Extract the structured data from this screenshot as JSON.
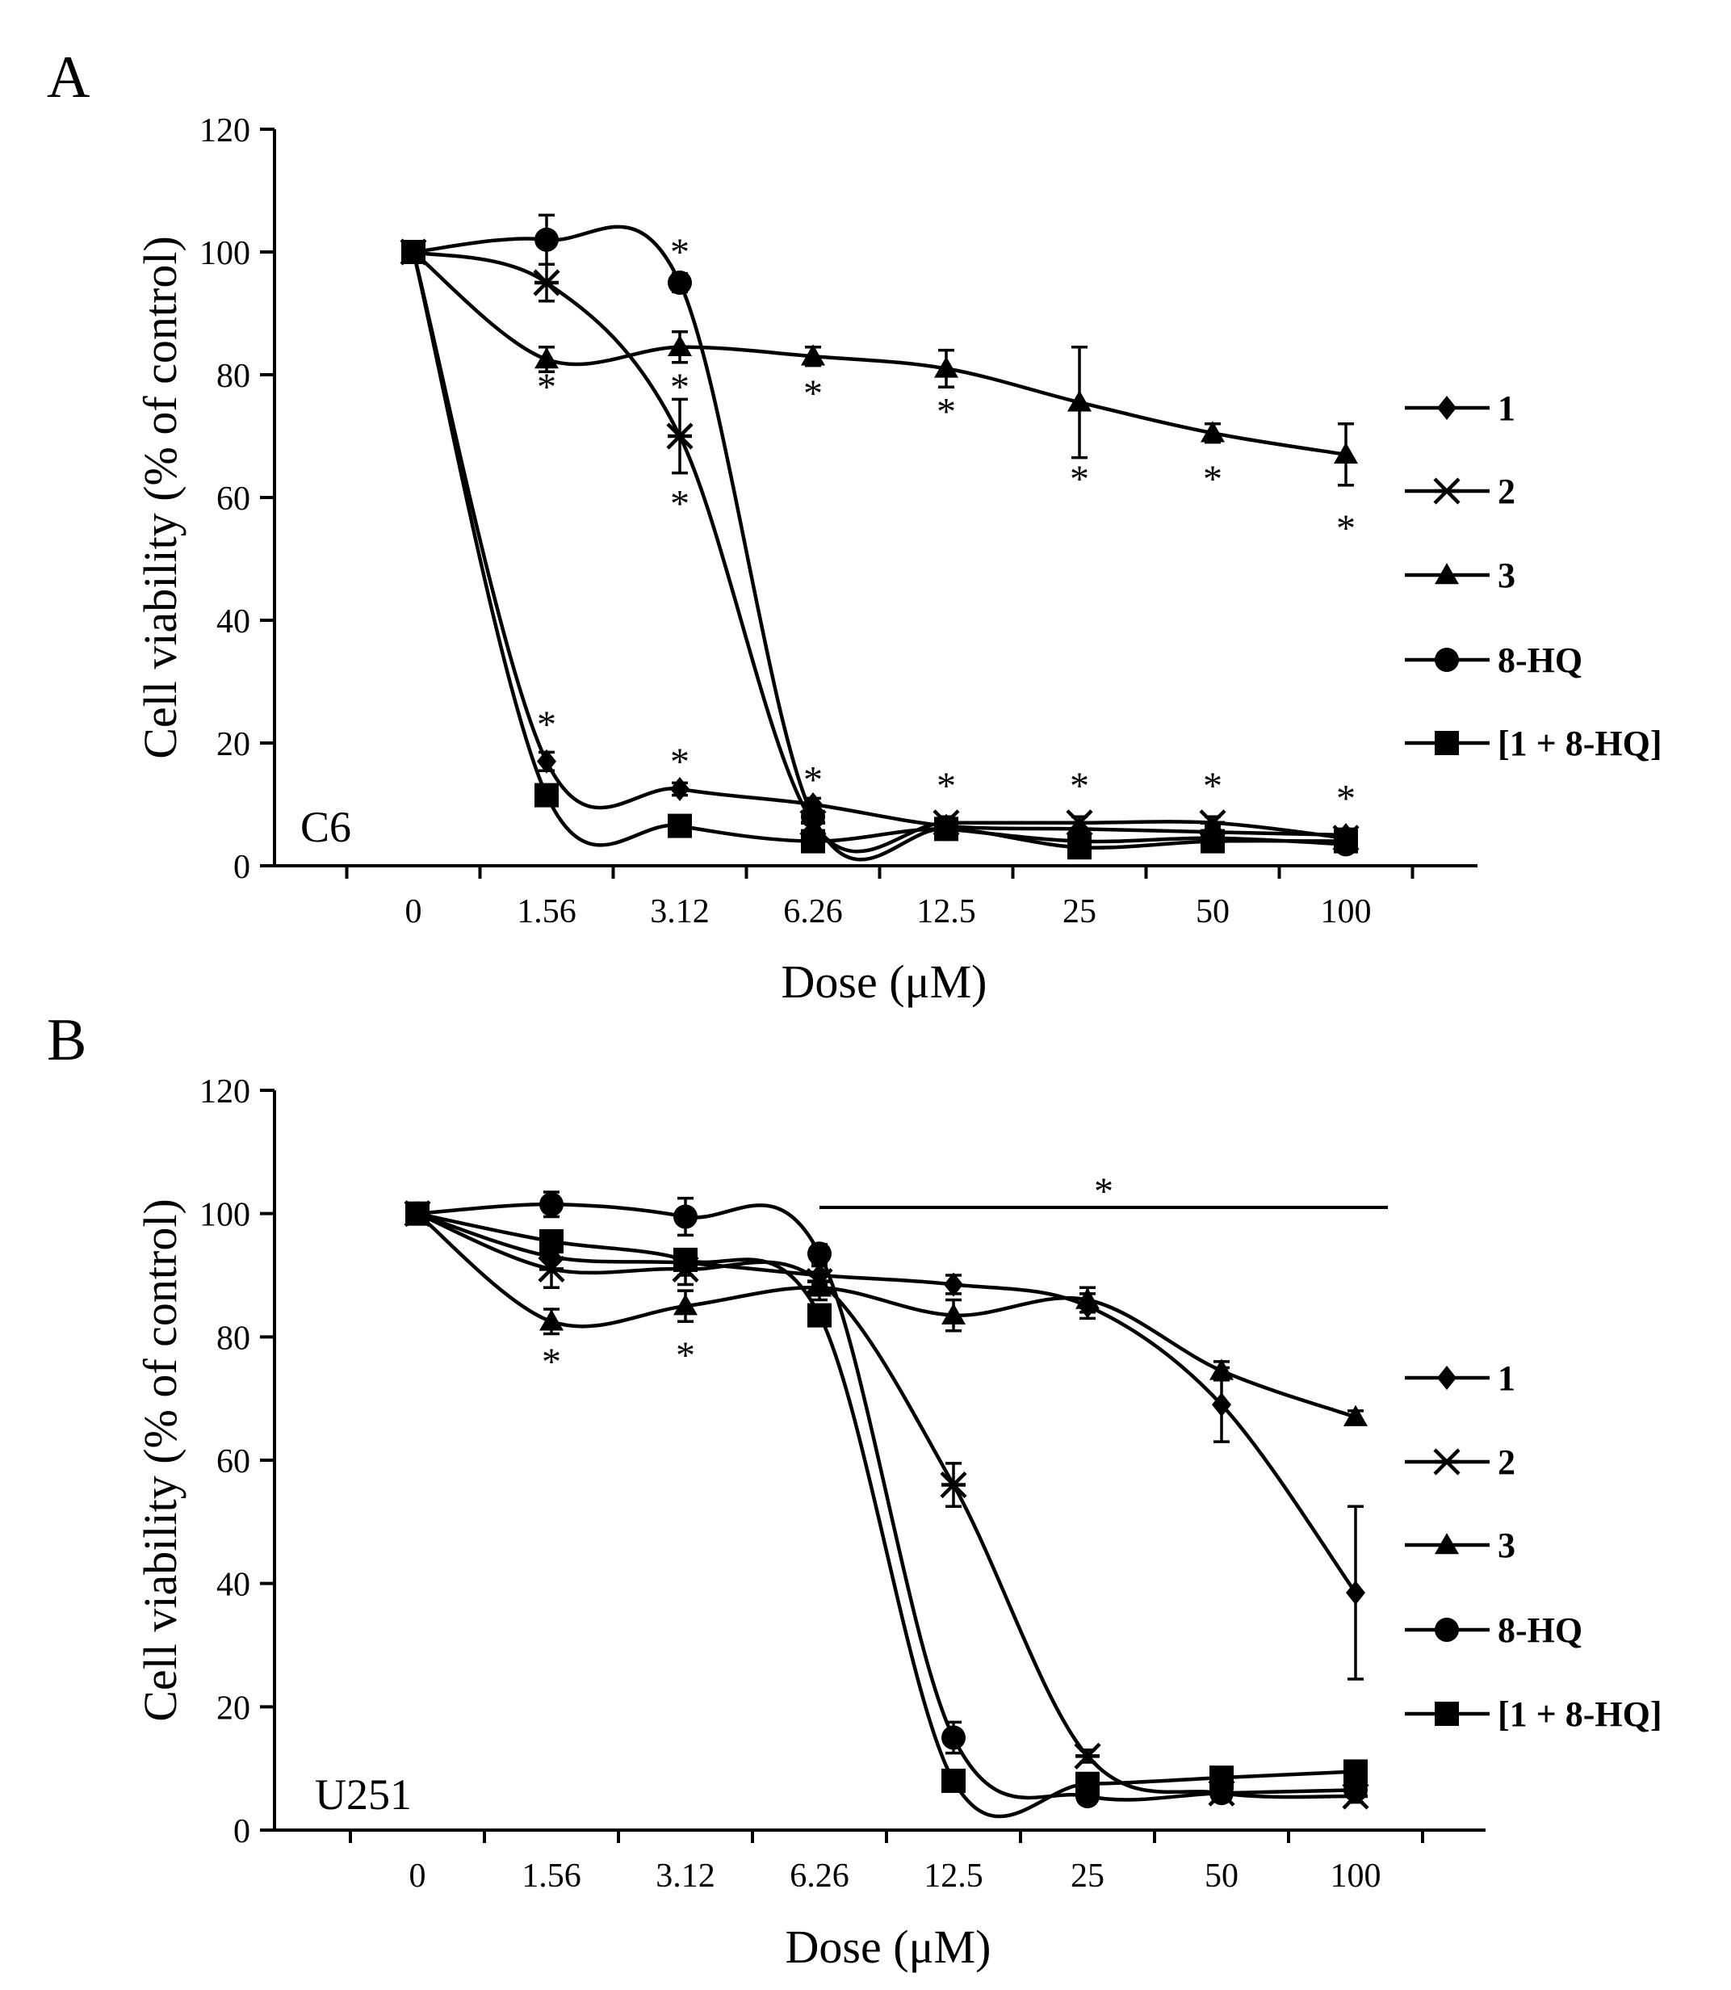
{
  "chart_data": [
    {
      "panel_letter": "A",
      "type": "line",
      "cell_line": "C6",
      "categories": [
        "0",
        "1.56",
        "3.12",
        "6.26",
        "12.5",
        "25",
        "50",
        "100"
      ],
      "xlabel": "Dose (μM)",
      "ylabel": "Cell viability (% of control)",
      "ylim": [
        0,
        120
      ],
      "yticks": [
        0,
        20,
        40,
        60,
        80,
        100,
        120
      ],
      "legend_position": "right",
      "series": [
        {
          "name": "1",
          "marker": "diamond",
          "values": [
            100,
            17,
            12.5,
            10,
            6.5,
            6,
            5.5,
            5
          ],
          "errors": [
            0,
            1.5,
            1,
            1,
            1,
            1,
            1,
            1
          ]
        },
        {
          "name": "2",
          "marker": "x",
          "values": [
            100,
            95,
            70,
            7,
            7,
            7,
            7,
            4.5
          ],
          "errors": [
            0,
            3,
            6,
            1,
            1,
            1,
            1,
            1
          ]
        },
        {
          "name": "3",
          "marker": "triangle",
          "values": [
            100,
            82.5,
            84.5,
            83,
            81,
            75.5,
            70.5,
            67
          ],
          "errors": [
            0,
            2,
            2.5,
            1.5,
            3,
            9,
            1.5,
            5
          ]
        },
        {
          "name": "8-HQ",
          "marker": "circle",
          "values": [
            100,
            102,
            95,
            8,
            6,
            4,
            4.5,
            3.5
          ],
          "errors": [
            0,
            4,
            1.5,
            1,
            1,
            1,
            1,
            1
          ]
        },
        {
          "name": "[1 + 8-HQ]",
          "marker": "square",
          "values": [
            100,
            11.5,
            6.5,
            4,
            6,
            3,
            4,
            4
          ],
          "errors": [
            0,
            1,
            1,
            1,
            1,
            1,
            1,
            1
          ]
        }
      ],
      "annotations": [
        {
          "text": "*",
          "category": "1.56",
          "y": 78
        },
        {
          "text": "*",
          "category": "1.56",
          "y": 23
        },
        {
          "text": "*",
          "category": "3.12",
          "y": 100
        },
        {
          "text": "*",
          "category": "3.12",
          "y": 78
        },
        {
          "text": "*",
          "category": "3.12",
          "y": 59
        },
        {
          "text": "*",
          "category": "3.12",
          "y": 17
        },
        {
          "text": "*",
          "category": "6.26",
          "y": 77
        },
        {
          "text": "*",
          "category": "6.26",
          "y": 14
        },
        {
          "text": "*",
          "category": "12.5",
          "y": 74
        },
        {
          "text": "*",
          "category": "12.5",
          "y": 13
        },
        {
          "text": "*",
          "category": "25",
          "y": 63
        },
        {
          "text": "*",
          "category": "25",
          "y": 13
        },
        {
          "text": "*",
          "category": "50",
          "y": 63
        },
        {
          "text": "*",
          "category": "50",
          "y": 13
        },
        {
          "text": "*",
          "category": "100",
          "y": 55
        },
        {
          "text": "*",
          "category": "100",
          "y": 11
        }
      ]
    },
    {
      "panel_letter": "B",
      "type": "line",
      "cell_line": "U251",
      "categories": [
        "0",
        "1.56",
        "3.12",
        "6.26",
        "12.5",
        "25",
        "50",
        "100"
      ],
      "xlabel": "Dose (μM)",
      "ylabel": "Cell viability (% of control)",
      "ylim": [
        0,
        120
      ],
      "yticks": [
        0,
        20,
        40,
        60,
        80,
        100,
        120
      ],
      "legend_position": "right",
      "series": [
        {
          "name": "1",
          "marker": "diamond",
          "values": [
            100,
            93,
            92,
            90,
            88.5,
            85,
            69,
            38.5
          ],
          "errors": [
            0,
            2,
            2,
            1.5,
            1.5,
            2,
            6,
            14
          ]
        },
        {
          "name": "2",
          "marker": "x",
          "values": [
            100,
            91,
            91,
            89,
            56,
            12,
            6,
            5.5
          ],
          "errors": [
            0,
            3,
            2.5,
            1.5,
            3.5,
            1,
            1,
            1
          ]
        },
        {
          "name": "3",
          "marker": "triangle",
          "values": [
            100,
            82.5,
            85,
            88,
            83.5,
            86,
            74.5,
            67
          ],
          "errors": [
            0,
            2,
            2.5,
            2,
            2.5,
            2,
            1.5,
            1
          ]
        },
        {
          "name": "8-HQ",
          "marker": "circle",
          "values": [
            100,
            101.5,
            99.5,
            93.5,
            15,
            5.5,
            6,
            6.5
          ],
          "errors": [
            0,
            2,
            3,
            1.5,
            2.5,
            1,
            1,
            1
          ]
        },
        {
          "name": "[1 + 8-HQ]",
          "marker": "square",
          "values": [
            100,
            95.5,
            92.5,
            83.5,
            8,
            7.5,
            8.5,
            9.5
          ],
          "errors": [
            0,
            1.5,
            1.5,
            1.5,
            1,
            1,
            1,
            1
          ]
        }
      ],
      "bracket": {
        "from_category": "6.26",
        "to_category": "100",
        "y": 101,
        "label": "*"
      },
      "annotations": [
        {
          "text": "*",
          "category": "1.56",
          "y": 76
        },
        {
          "text": "*",
          "category": "3.12",
          "y": 77
        }
      ]
    }
  ]
}
